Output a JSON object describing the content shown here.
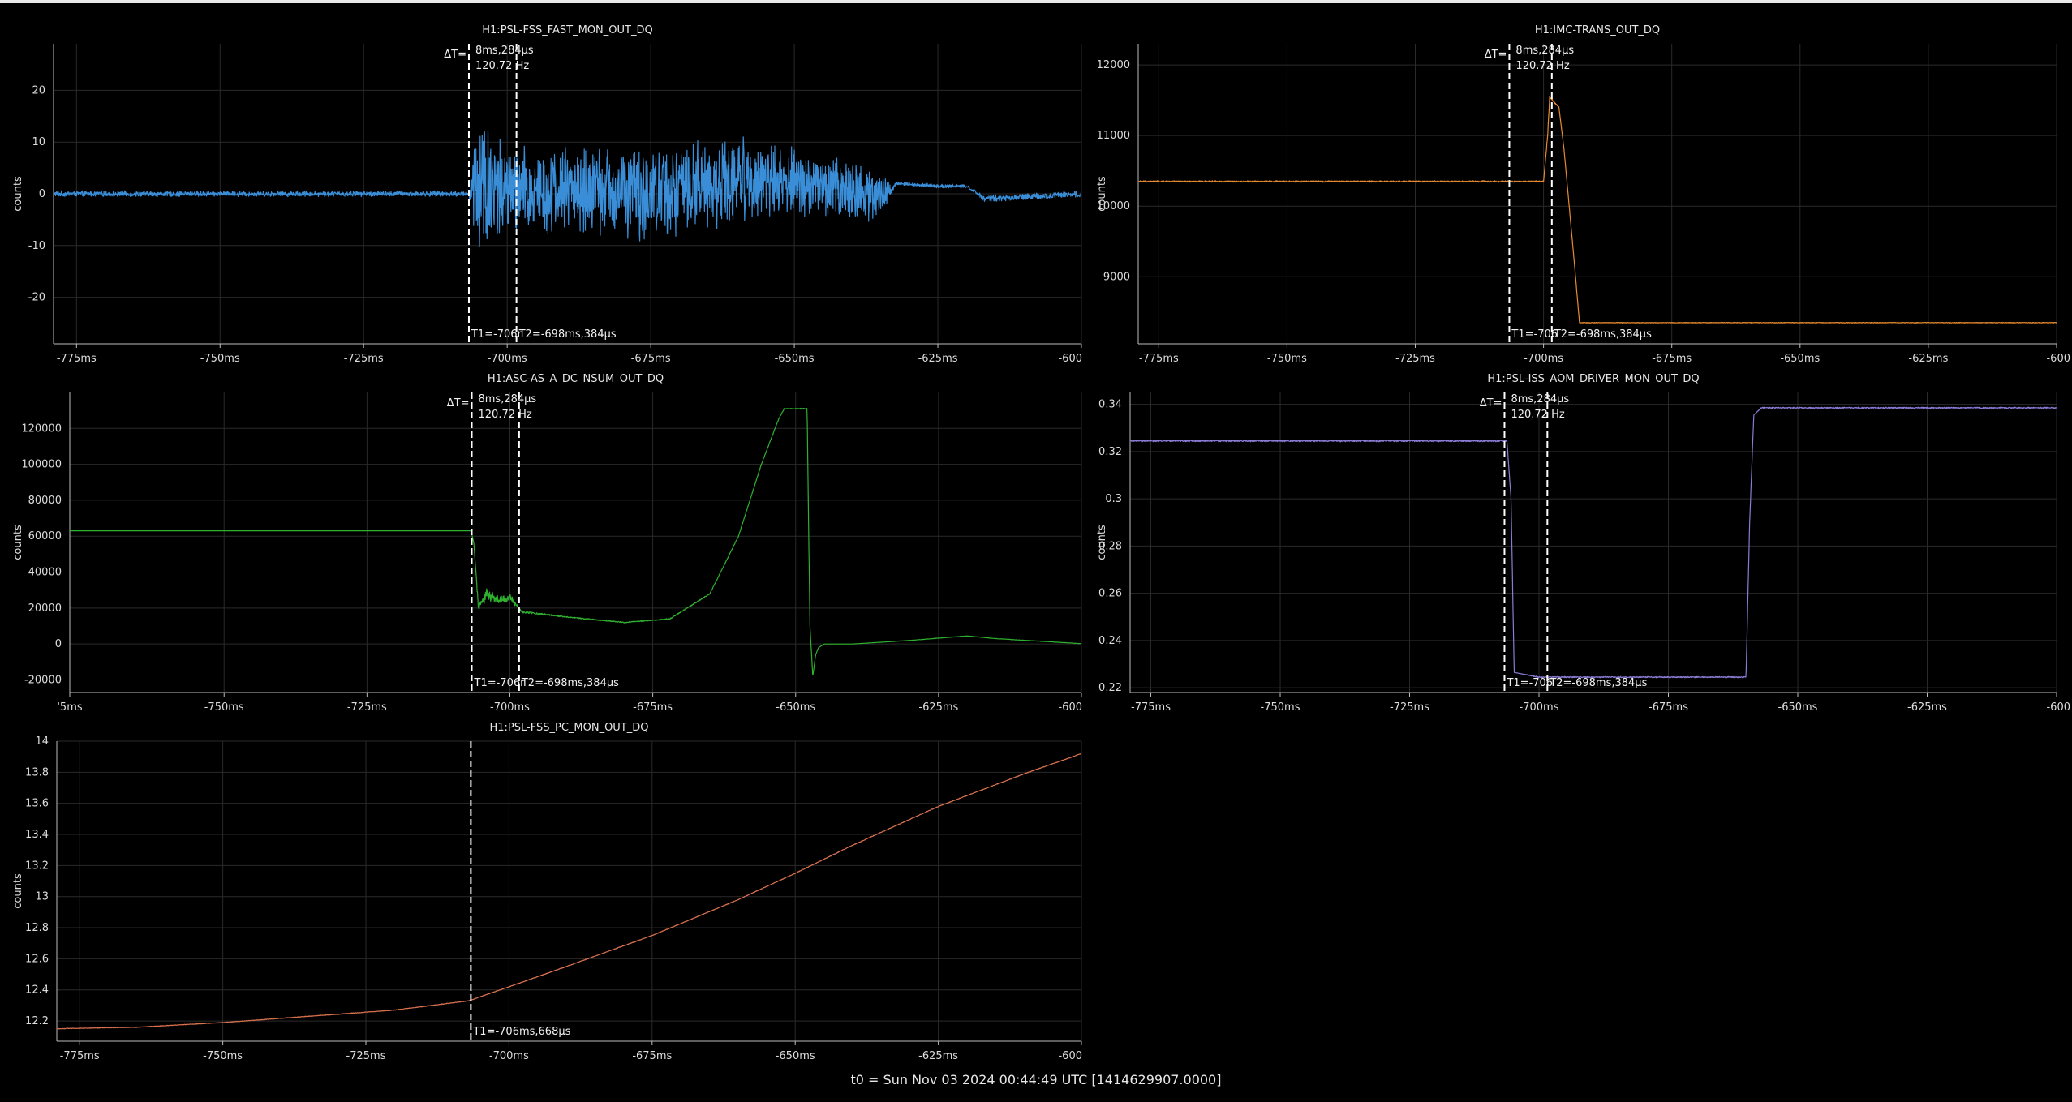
{
  "footer": {
    "t0": "t0 = Sun Nov 03 2024 00:44:49 UTC [1414629907.0000]"
  },
  "chart_data": [
    {
      "type": "line",
      "title": "H1:PSL-FSS_FAST_MON_OUT_DQ",
      "ylabel": "counts",
      "color": "#3a8ed8",
      "xlim": [
        -779,
        -600
      ],
      "ylim": [
        -29,
        29
      ],
      "xticks": [
        -775,
        -750,
        -725,
        -700,
        -675,
        -650,
        -625,
        -600
      ],
      "xtick_labels": [
        "-775ms",
        "-750ms",
        "-725ms",
        "-700ms",
        "-675ms",
        "-650ms",
        "-625ms",
        "-600"
      ],
      "yticks": [
        20,
        10,
        0,
        -10,
        -20
      ],
      "ytick_labels": [
        "20",
        "10",
        "0",
        "-10",
        "-20"
      ],
      "series": [
        {
          "x": [
            -779,
            -706.7,
            -705,
            -700,
            -690,
            -675,
            -660,
            -648,
            -635,
            -633,
            -632,
            -625,
            -620,
            -618,
            -617,
            -600
          ],
          "y": [
            0,
            0,
            2,
            0,
            1,
            0,
            3,
            2,
            0,
            1,
            2,
            1.5,
            1.5,
            0,
            -1,
            0
          ],
          "noise": [
            0.6,
            0.6,
            18,
            10,
            9,
            10,
            9,
            7,
            6,
            1,
            0.4,
            0.4,
            0.4,
            0.4,
            0.7,
            0.7
          ]
        }
      ],
      "cursors": {
        "t1": -706.668,
        "t2": -698.384,
        "dt_label": "ΔT=",
        "dt_value": "8ms,284µs",
        "freq": "120.72 Hz",
        "t1_label": "T1=-706r",
        "t2_label": "T2=-698ms,384µs"
      }
    },
    {
      "type": "line",
      "title": "H1:IMC-TRANS_OUT_DQ",
      "ylabel": "counts",
      "color": "#e88a2e",
      "xlim": [
        -779,
        -600
      ],
      "ylim": [
        8050,
        12300
      ],
      "xticks": [
        -775,
        -750,
        -725,
        -700,
        -675,
        -650,
        -625,
        -600
      ],
      "xtick_labels": [
        "-775ms",
        "-750ms",
        "-725ms",
        "-700ms",
        "-675ms",
        "-650ms",
        "-625ms",
        "-600"
      ],
      "yticks": [
        12000,
        11000,
        10000,
        9000
      ],
      "ytick_labels": [
        "12000",
        "11000",
        "10000",
        "9000"
      ],
      "series": [
        {
          "x": [
            -779,
            -707,
            -700,
            -699.2,
            -698.8,
            -697,
            -696,
            -694,
            -693
          ],
          "y": [
            10350,
            10350,
            10350,
            11000,
            11550,
            11400,
            10800,
            9200,
            8350
          ],
          "noise": [
            12,
            12,
            12,
            15,
            20,
            10,
            5,
            5,
            5
          ]
        }
      ],
      "cursors": {
        "t1": -706.668,
        "t2": -698.384,
        "dt_label": "ΔT=",
        "dt_value": "8ms,284µs",
        "freq": "120.72 Hz",
        "t1_label": "T1=-706",
        "t2_label": "T2=-698ms,384µs"
      }
    },
    {
      "type": "line",
      "title": "H1:ASC-AS_A_DC_NSUM_OUT_DQ",
      "ylabel": "counts",
      "color": "#2fb12f",
      "xlim": [
        -777,
        -600
      ],
      "ylim": [
        -27000,
        140000
      ],
      "xticks": [
        -777,
        -750,
        -725,
        -700,
        -675,
        -650,
        -625,
        -600
      ],
      "xtick_labels": [
        "'5ms",
        "-750ms",
        "-725ms",
        "-700ms",
        "-675ms",
        "-650ms",
        "-625ms",
        "-600"
      ],
      "yticks": [
        120000,
        100000,
        80000,
        60000,
        40000,
        20000,
        0,
        -20000
      ],
      "ytick_labels": [
        "120000",
        "100000",
        "80000",
        "60000",
        "40000",
        "20000",
        "0",
        "-20000"
      ],
      "series": [
        {
          "x": [
            -777,
            -706.8,
            -706.3,
            -705.5,
            -704,
            -702,
            -700,
            -698,
            -690,
            -680,
            -672,
            -665,
            -660,
            -656,
            -653,
            -652,
            -648,
            -647.5,
            -647,
            -646.5,
            -646,
            -645,
            -640,
            -630,
            -620,
            -615,
            -600
          ],
          "y": [
            63000,
            63000,
            56000,
            20000,
            28000,
            24000,
            26000,
            18000,
            15000,
            12000,
            14000,
            28000,
            60000,
            100000,
            125000,
            131000,
            131000,
            10000,
            -18000,
            -6000,
            -2000,
            0,
            0,
            2000,
            4500,
            3000,
            200
          ],
          "noise": [
            0,
            0,
            0,
            2500,
            3500,
            3000,
            2500,
            800,
            300,
            300,
            300,
            300,
            300,
            300,
            300,
            300,
            300,
            0,
            0,
            0,
            0,
            0,
            0,
            100,
            100,
            100,
            100
          ]
        }
      ],
      "cursors": {
        "t1": -706.668,
        "t2": -698.384,
        "dt_label": "ΔT=",
        "dt_value": "8ms,284µs",
        "freq": "120.72 Hz",
        "t1_label": "T1=-706r",
        "t2_label": "T2=-698ms,384µs"
      }
    },
    {
      "type": "line",
      "title": "H1:PSL-ISS_AOM_DRIVER_MON_OUT_DQ",
      "ylabel": "counts",
      "color": "#8c7bd6",
      "xlim": [
        -779,
        -600
      ],
      "ylim": [
        0.218,
        0.345
      ],
      "xticks": [
        -775,
        -750,
        -725,
        -700,
        -675,
        -650,
        -625,
        -600
      ],
      "xtick_labels": [
        "-775ms",
        "-750ms",
        "-725ms",
        "-700ms",
        "-675ms",
        "-650ms",
        "-625ms",
        "-600"
      ],
      "yticks": [
        0.34,
        0.32,
        0.3,
        0.28,
        0.26,
        0.24,
        0.22
      ],
      "ytick_labels": [
        "0.34",
        "0.32",
        "0.3",
        "0.28",
        "0.26",
        "0.24",
        "0.22"
      ],
      "series": [
        {
          "x": [
            -779,
            -706.2,
            -705.4,
            -704.8,
            -700,
            -690,
            -665.5,
            -660,
            -659.3,
            -658.5,
            -657,
            -600
          ],
          "y": [
            0.3245,
            0.3245,
            0.3,
            0.2265,
            0.2245,
            0.2245,
            0.2245,
            0.2245,
            0.29,
            0.3355,
            0.3385,
            0.3385
          ],
          "noise": [
            0.0004,
            0.0004,
            0,
            0,
            0.0003,
            0.0003,
            0.0003,
            0.0003,
            0,
            0,
            0.0003,
            0.0003
          ]
        }
      ],
      "cursors": {
        "t1": -706.668,
        "t2": -698.384,
        "dt_label": "ΔT=",
        "dt_value": "8ms,284µs",
        "freq": "120.72 Hz",
        "t1_label": "T1=-706",
        "t2_label": "T2=-698ms,384µs"
      }
    },
    {
      "type": "line",
      "title": "H1:PSL-FSS_PC_MON_OUT_DQ",
      "ylabel": "counts",
      "color": "#d9714f",
      "xlim": [
        -779,
        -600
      ],
      "ylim": [
        12.07,
        14.0
      ],
      "xticks": [
        -775,
        -750,
        -725,
        -700,
        -675,
        -650,
        -625,
        -600
      ],
      "xtick_labels": [
        "-775ms",
        "-750ms",
        "-725ms",
        "-700ms",
        "-675ms",
        "-650ms",
        "-625ms",
        "-600"
      ],
      "yticks": [
        14,
        13.8,
        13.6,
        13.4,
        13.2,
        13,
        12.8,
        12.6,
        12.4,
        12.2
      ],
      "ytick_labels": [
        "14",
        "13.8",
        "13.6",
        "13.4",
        "13.2",
        "13",
        "12.8",
        "12.6",
        "12.4",
        "12.2"
      ],
      "series": [
        {
          "x": [
            -779,
            -765,
            -750,
            -735,
            -720,
            -707,
            -700,
            -690,
            -675,
            -660,
            -650,
            -640,
            -625,
            -610,
            -600
          ],
          "y": [
            12.15,
            12.16,
            12.19,
            12.23,
            12.27,
            12.33,
            12.42,
            12.55,
            12.75,
            12.98,
            13.15,
            13.33,
            13.58,
            13.79,
            13.92
          ],
          "noise": [
            0.002,
            0.002,
            0.002,
            0.002,
            0.002,
            0.002,
            0.002,
            0.002,
            0.002,
            0.002,
            0.002,
            0.002,
            0.002,
            0.002,
            0.002
          ]
        }
      ],
      "cursors": {
        "t1": -706.668,
        "t1_label": "T1=-706ms,668µs"
      }
    }
  ]
}
